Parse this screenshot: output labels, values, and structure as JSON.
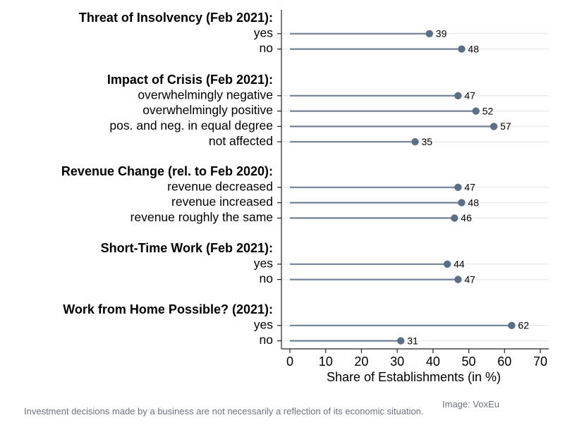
{
  "chart_data": {
    "type": "dot",
    "xlabel": "Share of Establishments (in %)",
    "xlim": [
      0,
      70
    ],
    "xticks": [
      0,
      10,
      20,
      30,
      40,
      50,
      60,
      70
    ],
    "grid": "horizontal",
    "colors": {
      "marker": "#5b6f86",
      "line": "#6f8196",
      "grid": "#e9ecef"
    },
    "groups": [
      {
        "title": "Threat of Insolvency (Feb 2021):",
        "items": [
          {
            "label": "yes",
            "value": 39
          },
          {
            "label": "no",
            "value": 48
          }
        ]
      },
      {
        "title": "Impact of Crisis (Feb 2021):",
        "items": [
          {
            "label": "overwhelmingly negative",
            "value": 47
          },
          {
            "label": "overwhelmingly positive",
            "value": 52
          },
          {
            "label": "pos. and neg. in equal degree",
            "value": 57
          },
          {
            "label": "not affected",
            "value": 35
          }
        ]
      },
      {
        "title": "Revenue Change (rel. to Feb 2020):",
        "items": [
          {
            "label": "revenue decreased",
            "value": 47
          },
          {
            "label": "revenue increased",
            "value": 48
          },
          {
            "label": "revenue roughly the same",
            "value": 46
          }
        ]
      },
      {
        "title": "Short-Time Work (Feb 2021):",
        "items": [
          {
            "label": "yes",
            "value": 44
          },
          {
            "label": "no",
            "value": 47
          }
        ]
      },
      {
        "title": "Work from Home Possible? (2021):",
        "items": [
          {
            "label": "yes",
            "value": 62
          },
          {
            "label": "no",
            "value": 31
          }
        ]
      }
    ]
  },
  "caption": "Investment decisions made by a business are not necessarily a reflection of its economic situation.",
  "credit": "Image: VoxEu"
}
